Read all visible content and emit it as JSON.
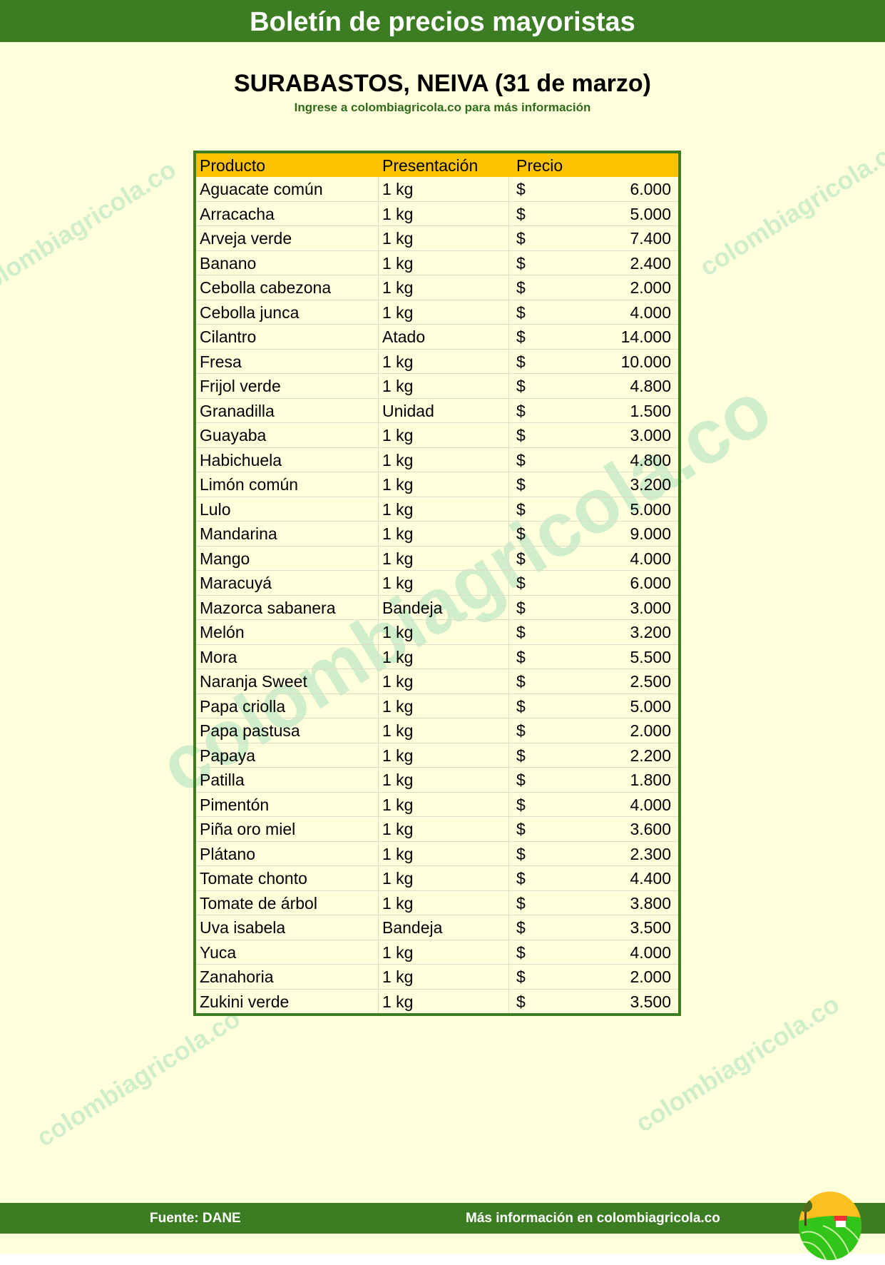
{
  "header": {
    "title": "Boletín de precios mayoristas"
  },
  "report": {
    "title": "SURABASTOS, NEIVA (31 de marzo)",
    "subtitle": "Ingrese a colombiagricola.co para más información"
  },
  "watermark": "colombiagricola.co",
  "table": {
    "columns": [
      "Producto",
      "Presentación",
      "Precio"
    ],
    "currency": "$",
    "rows": [
      [
        "Aguacate común",
        "1 kg",
        "6.000"
      ],
      [
        "Arracacha",
        "1 kg",
        "5.000"
      ],
      [
        "Arveja verde",
        "1 kg",
        "7.400"
      ],
      [
        "Banano",
        "1 kg",
        "2.400"
      ],
      [
        "Cebolla cabezona",
        "1 kg",
        "2.000"
      ],
      [
        "Cebolla junca",
        "1 kg",
        "4.000"
      ],
      [
        "Cilantro",
        "Atado",
        "14.000"
      ],
      [
        "Fresa",
        "1 kg",
        "10.000"
      ],
      [
        "Frijol verde",
        "1 kg",
        "4.800"
      ],
      [
        "Granadilla",
        "Unidad",
        "1.500"
      ],
      [
        "Guayaba",
        "1 kg",
        "3.000"
      ],
      [
        "Habichuela",
        "1 kg",
        "4.800"
      ],
      [
        "Limón común",
        "1 kg",
        "3.200"
      ],
      [
        "Lulo",
        "1 kg",
        "5.000"
      ],
      [
        "Mandarina",
        "1 kg",
        "9.000"
      ],
      [
        "Mango",
        "1 kg",
        "4.000"
      ],
      [
        "Maracuyá",
        "1 kg",
        "6.000"
      ],
      [
        "Mazorca sabanera",
        "Bandeja",
        "3.000"
      ],
      [
        "Melón",
        "1 kg",
        "3.200"
      ],
      [
        "Mora",
        "1 kg",
        "5.500"
      ],
      [
        "Naranja Sweet",
        "1 kg",
        "2.500"
      ],
      [
        "Papa criolla",
        "1 kg",
        "5.000"
      ],
      [
        "Papa pastusa",
        "1 kg",
        "2.000"
      ],
      [
        "Papaya",
        "1 kg",
        "2.200"
      ],
      [
        "Patilla",
        "1 kg",
        "1.800"
      ],
      [
        "Pimentón",
        "1 kg",
        "4.000"
      ],
      [
        "Piña oro miel",
        "1 kg",
        "3.600"
      ],
      [
        "Plátano",
        "1 kg",
        "2.300"
      ],
      [
        "Tomate chonto",
        "1 kg",
        "4.400"
      ],
      [
        "Tomate de árbol",
        "1 kg",
        "3.800"
      ],
      [
        "Uva isabela",
        "Bandeja",
        "3.500"
      ],
      [
        "Yuca",
        "1 kg",
        "4.000"
      ],
      [
        "Zanahoria",
        "1 kg",
        "2.000"
      ],
      [
        "Zukini verde",
        "1 kg",
        "3.500"
      ]
    ]
  },
  "footer": {
    "source": "Fuente: DANE",
    "more_info": "Más información en colombiagricola.co"
  },
  "colors": {
    "green": "#3c7d23",
    "header_row": "#fdc300",
    "background": "#ffffdc",
    "watermark": "#c9ecc9"
  }
}
